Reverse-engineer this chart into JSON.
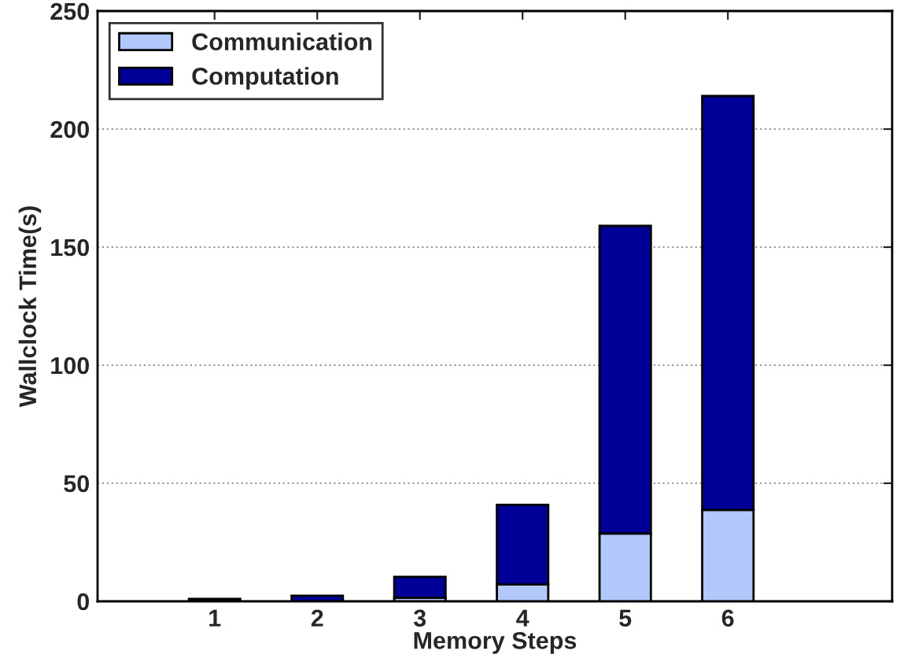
{
  "chart_data": {
    "type": "bar",
    "stacked": true,
    "xlabel": "Memory Steps",
    "ylabel": "Wallclock Time(s)",
    "categories": [
      "1",
      "2",
      "3",
      "4",
      "5",
      "6"
    ],
    "series": [
      {
        "name": "Communication",
        "color": "#b3c8fa",
        "values": [
          null,
          null,
          1.5,
          7.1,
          28.7,
          38.7
        ]
      },
      {
        "name": "Computation",
        "color": "#000099",
        "values": [
          1.0,
          2.4,
          8.9,
          33.8,
          130.3,
          175.3
        ]
      }
    ],
    "ylim": [
      0,
      250
    ],
    "yticks": [
      0,
      50,
      100,
      150,
      200,
      250
    ],
    "grid": "y",
    "legend": "top left"
  }
}
